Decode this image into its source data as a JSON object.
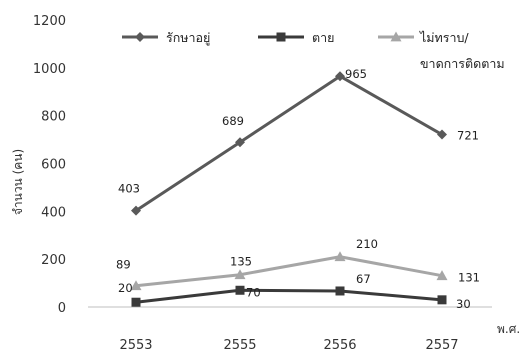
{
  "chart_data": {
    "type": "line",
    "categories": [
      "2553",
      "2555",
      "2556",
      "2557"
    ],
    "y_ticks": [
      "0",
      "200",
      "400",
      "600",
      "800",
      "1000",
      "1200"
    ],
    "ylim": [
      0,
      1200
    ],
    "ylabel": "จำนวน (คน)",
    "xlabel": "พ.ศ.",
    "grid": false,
    "legend": "top",
    "series": [
      {
        "name": "รักษาอยู่",
        "values": [
          403,
          689,
          965,
          721
        ],
        "color": "#595959",
        "marker": "diamond"
      },
      {
        "name": "ตาย",
        "values": [
          20,
          70,
          67,
          30
        ],
        "color": "#3a3a3a",
        "marker": "square"
      },
      {
        "name": "ไม่ทราบ/ ขาดการติดตาม",
        "name_lines": [
          "ไม่ทราบ/",
          "ขาดการติดตาม"
        ],
        "values": [
          89,
          135,
          210,
          131
        ],
        "color": "#a6a6a6",
        "marker": "triangle"
      }
    ],
    "data_labels": [
      [
        "403",
        "689",
        "965",
        "721"
      ],
      [
        "20",
        "70",
        "67",
        "30"
      ],
      [
        "89",
        "135",
        "210",
        "131"
      ]
    ]
  }
}
